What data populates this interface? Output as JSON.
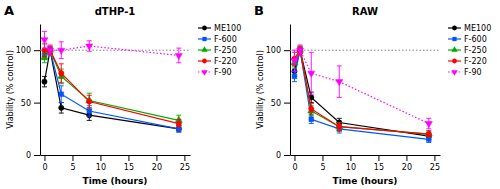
{
  "chart_data": [
    {
      "type": "line",
      "title": "dTHP-1",
      "annotations": [
        "A"
      ],
      "x_label": "Time (hours)",
      "y_label": "Viability (% control)",
      "x": [
        0,
        1,
        3,
        8,
        24
      ],
      "series": [
        {
          "name": "ME100",
          "color": "#000000",
          "marker": "circle",
          "line_style": "solid",
          "values": [
            70,
            100,
            45,
            38,
            25
          ],
          "errors": [
            5,
            3,
            5,
            5,
            3
          ]
        },
        {
          "name": "F-600",
          "color": "#0055FF",
          "marker": "square",
          "line_style": "solid",
          "values": [
            95,
            100,
            58,
            42,
            25
          ],
          "errors": [
            4,
            3,
            8,
            5,
            3
          ]
        },
        {
          "name": "F-250",
          "color": "#00AA00",
          "marker": "triangle-up",
          "line_style": "solid",
          "values": [
            93,
            100,
            75,
            52,
            33
          ],
          "errors": [
            5,
            3,
            7,
            7,
            5
          ]
        },
        {
          "name": "F-220",
          "color": "#FF0000",
          "marker": "circle",
          "line_style": "solid",
          "values": [
            100,
            100,
            78,
            51,
            30
          ],
          "errors": [
            6,
            4,
            9,
            6,
            4
          ]
        },
        {
          "name": "F-90",
          "color": "#FF00FF",
          "marker": "triangle-down",
          "line_style": "dotted",
          "values": [
            110,
            100,
            100,
            104,
            95
          ],
          "errors": [
            8,
            5,
            8,
            5,
            7
          ]
        }
      ],
      "hline": 100,
      "xlim": [
        -0.8,
        26
      ],
      "xticks": [
        0,
        5,
        10,
        15,
        20,
        25
      ],
      "ylim": [
        0,
        125
      ],
      "yticks": [
        0,
        50,
        100
      ],
      "grid": false,
      "legend": "right"
    },
    {
      "type": "line",
      "title": "RAW",
      "annotations": [
        "B"
      ],
      "x_label": "Time (hours)",
      "y_label": "Viability (% control)",
      "x": [
        0,
        1,
        3,
        8,
        24
      ],
      "series": [
        {
          "name": "ME100",
          "color": "#000000",
          "marker": "circle",
          "line_style": "solid",
          "values": [
            80,
            100,
            55,
            31,
            18
          ],
          "errors": [
            5,
            3,
            5,
            4,
            3
          ]
        },
        {
          "name": "F-600",
          "color": "#0055FF",
          "marker": "square",
          "line_style": "solid",
          "values": [
            75,
            100,
            34,
            25,
            15
          ],
          "errors": [
            5,
            3,
            4,
            4,
            3
          ]
        },
        {
          "name": "F-250",
          "color": "#00AA00",
          "marker": "triangle-up",
          "line_style": "solid",
          "values": [
            88,
            100,
            42,
            27,
            20
          ],
          "errors": [
            5,
            3,
            5,
            4,
            3
          ]
        },
        {
          "name": "F-220",
          "color": "#FF0000",
          "marker": "circle",
          "line_style": "solid",
          "values": [
            92,
            100,
            44,
            27,
            20
          ],
          "errors": [
            6,
            4,
            5,
            4,
            3
          ]
        },
        {
          "name": "F-90",
          "color": "#FF00FF",
          "marker": "triangle-down",
          "line_style": "dotted",
          "values": [
            90,
            100,
            78,
            70,
            30
          ],
          "errors": [
            10,
            5,
            20,
            15,
            5
          ]
        }
      ],
      "hline": 100,
      "xlim": [
        -0.8,
        26
      ],
      "xticks": [
        0,
        5,
        10,
        15,
        20,
        25
      ],
      "ylim": [
        0,
        125
      ],
      "yticks": [
        0,
        50,
        100
      ],
      "grid": false,
      "legend": "right"
    }
  ]
}
